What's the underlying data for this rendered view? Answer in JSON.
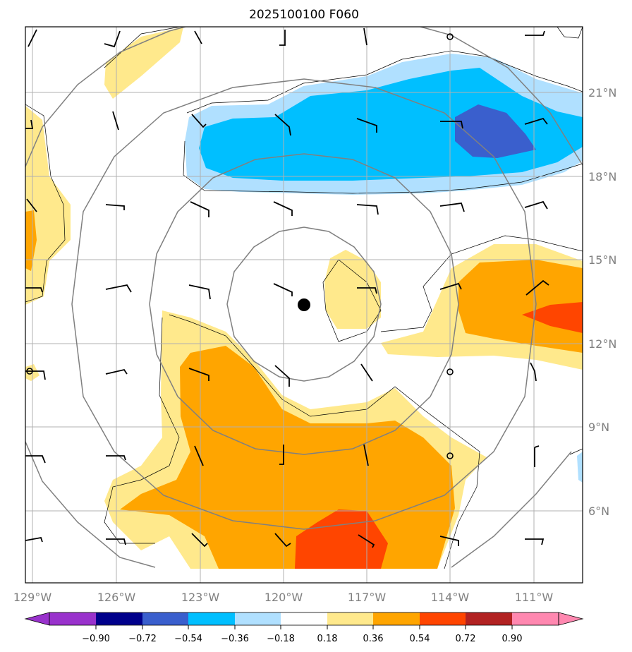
{
  "title": "2025100100 F060",
  "map": {
    "lon_labels": [
      "129°W",
      "126°W",
      "123°W",
      "120°W",
      "117°W",
      "114°W",
      "111°W"
    ],
    "lat_labels": [
      "21°N",
      "18°N",
      "15°N",
      "12°N",
      "9°N",
      "6°N"
    ],
    "center": {
      "lon": "119.4°W",
      "lat": "13.4°N"
    },
    "colors": {
      "light_blue": "#b0e0ff",
      "deep_sky": "#00bfff",
      "royal_blue": "#3a5fcd",
      "light_yellow": "#ffe98c",
      "orange": "#ffa500",
      "orange_red": "#ff4500",
      "gridline": "#b0b0b0",
      "range_ring": "#808080"
    }
  },
  "colorbar": {
    "labels": [
      "−0.90",
      "−0.72",
      "−0.54",
      "−0.36",
      "−0.18",
      "0.18",
      "0.36",
      "0.54",
      "0.72",
      "0.90"
    ],
    "colors": [
      "#9932cc",
      "#00008b",
      "#3a5fcd",
      "#00bfff",
      "#b0e0ff",
      "#ffffff",
      "#ffe98c",
      "#ffa500",
      "#ff4500",
      "#b22222",
      "#ff88b0"
    ]
  }
}
